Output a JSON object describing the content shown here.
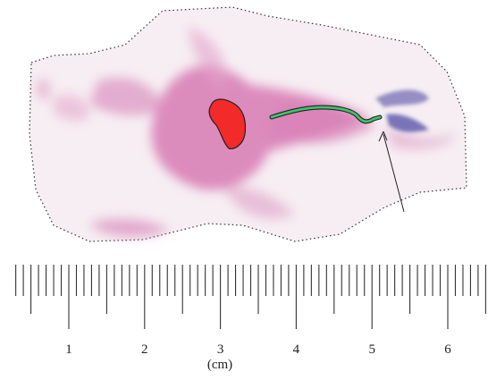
{
  "ruler": {
    "labels": [
      "1",
      "2",
      "3",
      "4",
      "5",
      "6"
    ],
    "unit": "(cm)"
  }
}
